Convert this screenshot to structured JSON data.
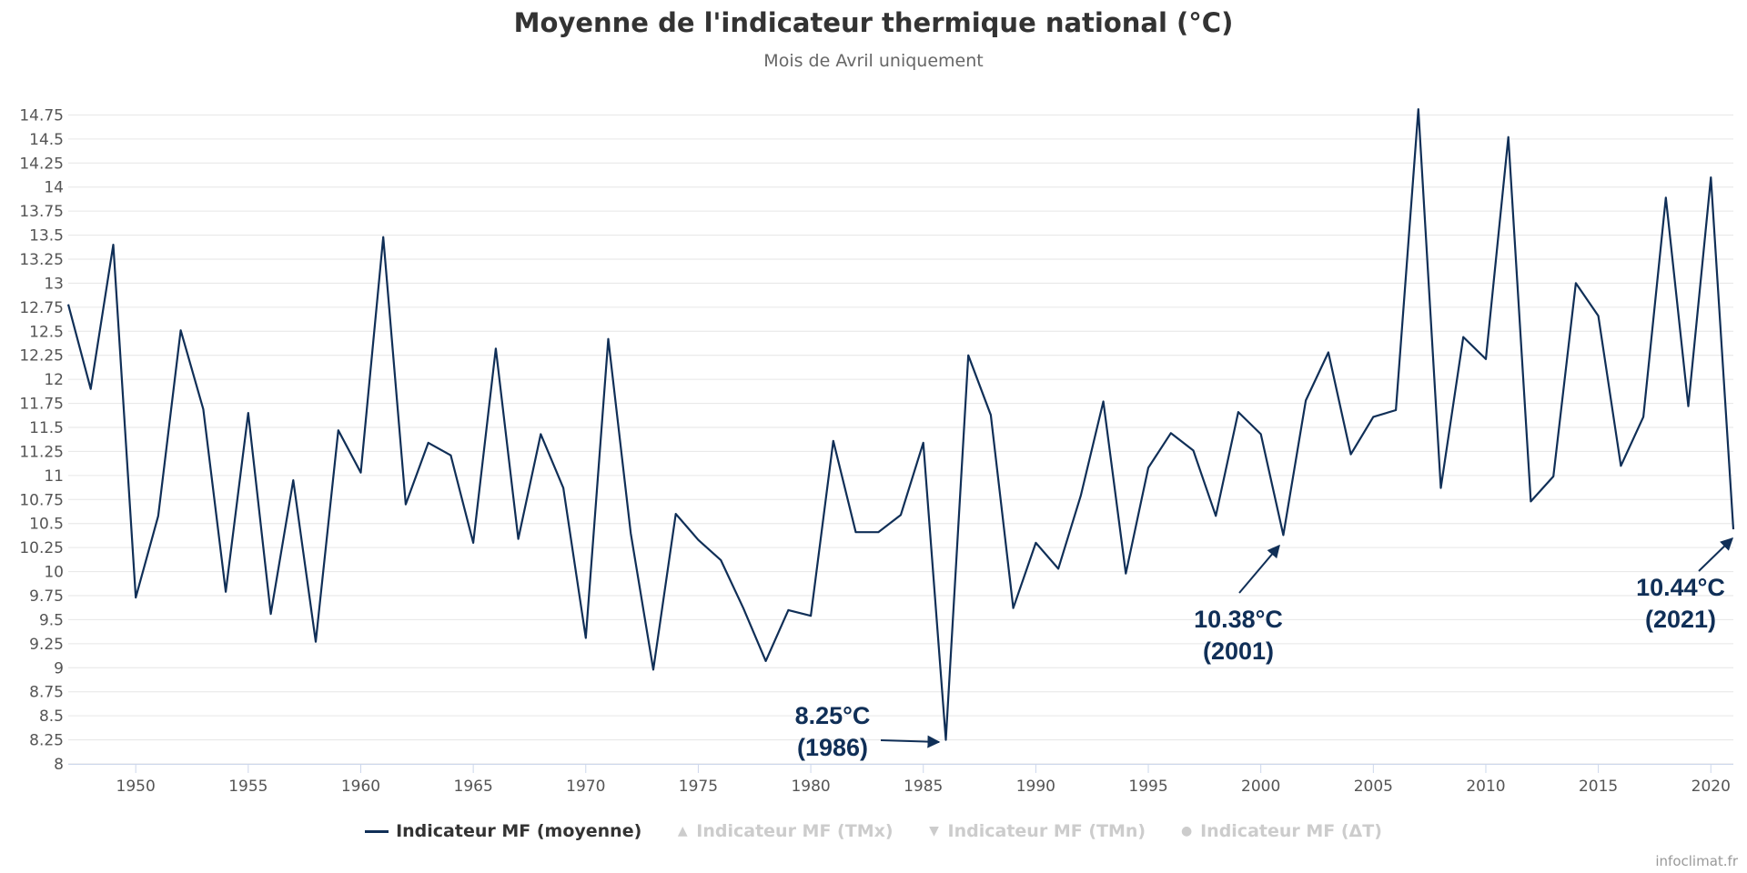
{
  "title": "Moyenne de l'indicateur thermique national (°C)",
  "subtitle": "Mois de Avril uniquement",
  "credit": "infoclimat.fr",
  "colors": {
    "series": "#102f57",
    "grid": "#e6e6e6",
    "inactive": "#cccccc"
  },
  "legend": [
    {
      "label": "Indicateur MF (moyenne)",
      "symbol": "line",
      "active": true
    },
    {
      "label": "Indicateur MF (TMx)",
      "symbol": "▲",
      "active": false
    },
    {
      "label": "Indicateur MF (TMn)",
      "symbol": "▼",
      "active": false
    },
    {
      "label": "Indicateur MF (ΔT)",
      "symbol": "●",
      "active": false
    }
  ],
  "annotations": [
    {
      "value": "8.25°C",
      "year": "(1986)"
    },
    {
      "value": "10.38°C",
      "year": "(2001)"
    },
    {
      "value": "10.44°C",
      "year": "(2021)"
    }
  ],
  "chart_data": {
    "type": "line",
    "title": "Moyenne de l'indicateur thermique national (°C)",
    "subtitle": "Mois de Avril uniquement",
    "xlim": [
      1947,
      2021
    ],
    "ylim": [
      8,
      15
    ],
    "x_ticks": [
      1950,
      1955,
      1960,
      1965,
      1970,
      1975,
      1980,
      1985,
      1990,
      1995,
      2000,
      2005,
      2010,
      2015,
      2020
    ],
    "y_ticks": [
      "8",
      "8.25",
      "8.5",
      "8.75",
      "9",
      "9.25",
      "9.5",
      "9.75",
      "10",
      "10.25",
      "10.5",
      "10.75",
      "11",
      "11.25",
      "11.5",
      "11.75",
      "12",
      "12.25",
      "12.5",
      "12.75",
      "13",
      "13.25",
      "13.5",
      "13.75",
      "14",
      "14.25",
      "14.5",
      "14.75"
    ],
    "series": [
      {
        "name": "Indicateur MF (moyenne)",
        "x": [
          1947,
          1948,
          1949,
          1950,
          1951,
          1952,
          1953,
          1954,
          1955,
          1956,
          1957,
          1958,
          1959,
          1960,
          1961,
          1962,
          1963,
          1964,
          1965,
          1966,
          1967,
          1968,
          1969,
          1970,
          1971,
          1972,
          1973,
          1974,
          1975,
          1976,
          1977,
          1978,
          1979,
          1980,
          1981,
          1982,
          1983,
          1984,
          1985,
          1986,
          1987,
          1988,
          1989,
          1990,
          1991,
          1992,
          1993,
          1994,
          1995,
          1996,
          1997,
          1998,
          1999,
          2000,
          2001,
          2002,
          2003,
          2004,
          2005,
          2006,
          2007,
          2008,
          2009,
          2010,
          2011,
          2012,
          2013,
          2014,
          2015,
          2016,
          2017,
          2018,
          2019,
          2020,
          2021
        ],
        "values": [
          12.78,
          11.9,
          13.4,
          9.73,
          10.58,
          12.51,
          11.69,
          9.79,
          11.65,
          9.56,
          10.95,
          9.27,
          11.47,
          11.03,
          13.48,
          10.7,
          11.34,
          11.21,
          10.3,
          12.32,
          10.34,
          11.43,
          10.87,
          9.31,
          12.42,
          10.4,
          8.98,
          10.6,
          10.33,
          10.12,
          9.62,
          9.07,
          9.6,
          9.54,
          11.36,
          10.41,
          10.41,
          10.59,
          11.34,
          8.25,
          12.25,
          11.63,
          9.62,
          10.3,
          10.03,
          10.79,
          11.77,
          9.98,
          11.08,
          11.44,
          11.26,
          10.58,
          11.66,
          11.43,
          10.38,
          11.78,
          12.28,
          11.22,
          11.61,
          11.68,
          14.81,
          10.87,
          12.44,
          12.21,
          14.52,
          10.73,
          10.99,
          13.0,
          12.66,
          11.1,
          11.61,
          13.89,
          11.72,
          14.1,
          10.44
        ]
      }
    ],
    "annotations": [
      {
        "x": 1986,
        "y": 8.25,
        "text": "8.25°C (1986)"
      },
      {
        "x": 2001,
        "y": 10.38,
        "text": "10.38°C (2001)"
      },
      {
        "x": 2021,
        "y": 10.44,
        "text": "10.44°C (2021)"
      }
    ],
    "legend_position": "bottom-center"
  }
}
